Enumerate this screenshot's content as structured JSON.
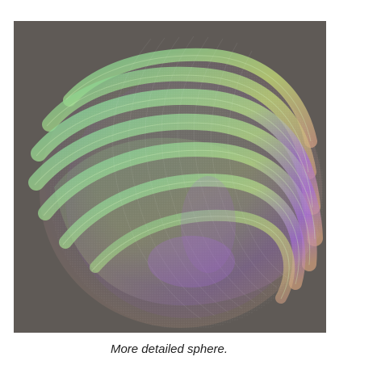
{
  "figure": {
    "caption": "More detailed sphere.",
    "image_subject": "sphere-render",
    "colors": {
      "background": "#5f5a56",
      "green": "#86d58f",
      "yellow_green": "#c8e07a",
      "magenta": "#a56ad8",
      "orange": "#d6a07b"
    }
  }
}
